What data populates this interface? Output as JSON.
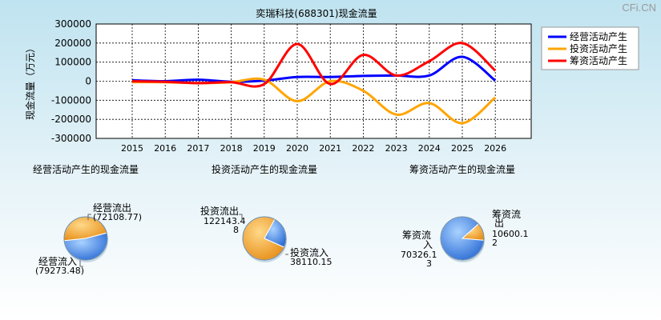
{
  "watermark": "CFi.CN",
  "chart_data": [
    {
      "type": "line",
      "title": "奕瑞科技(688301)现金流量",
      "ylabel": "现金流量（万元）",
      "x": [
        "2015",
        "2016",
        "2017",
        "2018",
        "2019",
        "2020",
        "2021",
        "2022",
        "2023",
        "2024",
        "2025",
        "2026"
      ],
      "ylim": [
        -300000,
        300000
      ],
      "yticks": [
        300000,
        200000,
        100000,
        0,
        -100000,
        -200000,
        -300000
      ],
      "grid": true,
      "legend_position": "top-right",
      "series": [
        {
          "name": "经营活动产生",
          "color": "#0000ff",
          "values": [
            5000,
            0,
            8000,
            -3000,
            3000,
            22000,
            22000,
            28000,
            30000,
            30000,
            128000,
            3000
          ]
        },
        {
          "name": "投资活动产生",
          "color": "#ffa500",
          "values": [
            -5000,
            -5000,
            -10000,
            -5000,
            8000,
            -105000,
            0,
            -50000,
            -175000,
            -115000,
            -220000,
            -85000
          ]
        },
        {
          "name": "筹资活动产生",
          "color": "#ff0000",
          "values": [
            0,
            -3000,
            -10000,
            -5000,
            -15000,
            195000,
            -15000,
            138000,
            30000,
            105000,
            200000,
            55000
          ]
        }
      ]
    },
    {
      "type": "pie",
      "title": "经营活动产生的现金流量",
      "slices": [
        {
          "label": "经营流出",
          "value_label": "(72108.77)",
          "value": 72108.77,
          "color": "#f5a623"
        },
        {
          "label": "经营流入",
          "value_label": "(79273.48)",
          "value": 79273.48,
          "color": "#4a90e2"
        }
      ]
    },
    {
      "type": "pie",
      "title": "投资活动产生的现金流量",
      "slices": [
        {
          "label": "投资流出",
          "value_label": "122143.48",
          "value": 122143.48,
          "color": "#f5a623"
        },
        {
          "label": "投资流入",
          "value_label": "38110.15",
          "value": 38110.15,
          "color": "#4a90e2"
        }
      ]
    },
    {
      "type": "pie",
      "title": "筹资活动产生的现金流量",
      "slices": [
        {
          "label": "筹资流出",
          "value_label": "10600.12",
          "value": 10600.12,
          "color": "#f5a623"
        },
        {
          "label": "筹资流入",
          "value_label": "70326.13",
          "value": 70326.13,
          "color": "#4a90e2"
        }
      ]
    }
  ]
}
